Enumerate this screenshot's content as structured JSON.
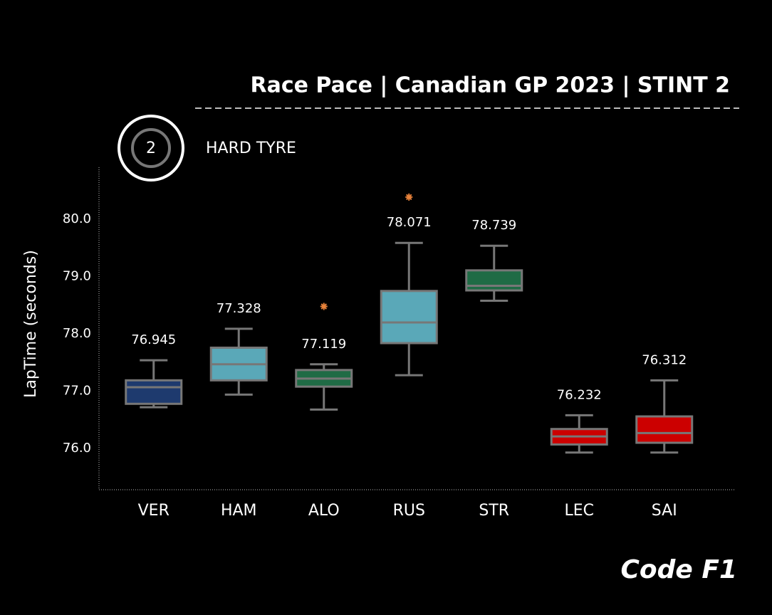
{
  "chart_data": {
    "type": "box",
    "title": "Race Pace | Canadian GP 2023 | STINT 2",
    "badge": "2",
    "subtitle": "HARD TYRE",
    "ylabel": "LapTime (seconds)",
    "watermark": "Code F1",
    "ylim": [
      75.28,
      80.91
    ],
    "yticks": [
      {
        "value": 76,
        "label": "76.0"
      },
      {
        "value": 77,
        "label": "77.0"
      },
      {
        "value": 78,
        "label": "78.0"
      },
      {
        "value": 79,
        "label": "79.0"
      },
      {
        "value": 80,
        "label": "80.0"
      }
    ],
    "edge_color": "#777777",
    "outlier_color": "#e8823a",
    "categories": [
      "VER",
      "HAM",
      "ALO",
      "RUS",
      "STR",
      "LEC",
      "SAI"
    ],
    "boxes": [
      {
        "color": "#1e3a6e",
        "whisker_low": 76.72,
        "q1": 76.78,
        "median": 77.07,
        "q3": 77.19,
        "whisker_high": 77.54,
        "outliers": [],
        "label_value": 76.945
      },
      {
        "color": "#5aa8b8",
        "whisker_low": 76.94,
        "q1": 77.19,
        "median": 77.47,
        "q3": 77.76,
        "whisker_high": 78.09,
        "outliers": [],
        "label_value": 77.328
      },
      {
        "color": "#1f6b45",
        "whisker_low": 76.68,
        "q1": 77.08,
        "median": 77.22,
        "q3": 77.37,
        "whisker_high": 77.47,
        "outliers": [
          78.48
        ],
        "label_value": 77.119
      },
      {
        "color": "#5aa8b8",
        "whisker_low": 77.28,
        "q1": 77.84,
        "median": 78.2,
        "q3": 78.75,
        "whisker_high": 79.59,
        "outliers": [
          80.39
        ],
        "label_value": 78.071
      },
      {
        "color": "#1f6b45",
        "whisker_low": 78.58,
        "q1": 78.76,
        "median": 78.84,
        "q3": 79.11,
        "whisker_high": 79.54,
        "outliers": [],
        "label_value": 78.739
      },
      {
        "color": "#cc0000",
        "whisker_low": 75.93,
        "q1": 76.07,
        "median": 76.21,
        "q3": 76.34,
        "whisker_high": 76.58,
        "outliers": [],
        "label_value": 76.232
      },
      {
        "color": "#cc0000",
        "whisker_low": 75.93,
        "q1": 76.1,
        "median": 76.27,
        "q3": 76.56,
        "whisker_high": 77.19,
        "outliers": [],
        "label_value": 76.312
      }
    ]
  }
}
